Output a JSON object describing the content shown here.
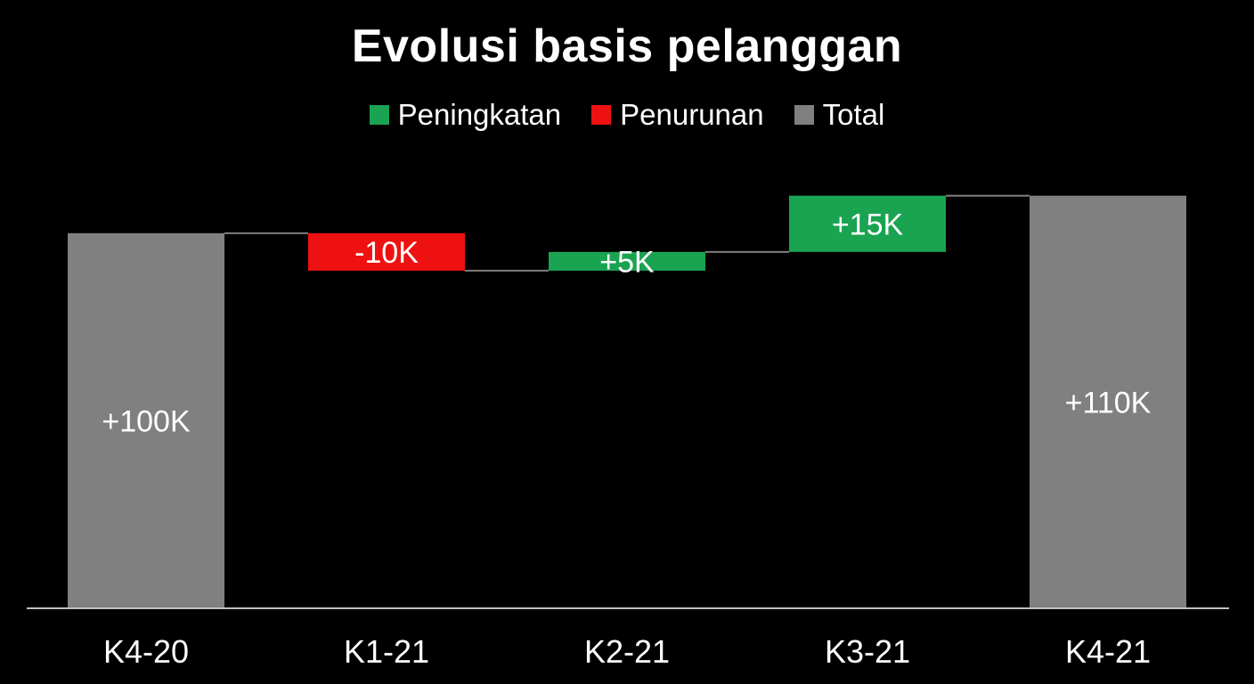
{
  "chart_data": {
    "type": "bar",
    "subtype": "waterfall",
    "title": "Evolusi basis pelanggan",
    "xlabel": "",
    "ylabel": "",
    "legend_position": "top",
    "grid": false,
    "ylim": [
      0,
      118
    ],
    "unit_suffix": "K",
    "legend": [
      {
        "name": "Peningkatan",
        "color": "#1aa351"
      },
      {
        "name": "Penurunan",
        "color": "#ee1111"
      },
      {
        "name": "Total",
        "color": "#808080"
      }
    ],
    "categories": [
      "K4-20",
      "K1-21",
      "K2-21",
      "K3-21",
      "K4-21"
    ],
    "points": [
      {
        "category": "K4-20",
        "kind": "total",
        "start": 0,
        "end": 100,
        "label": "+100K"
      },
      {
        "category": "K1-21",
        "kind": "decrease",
        "start": 100,
        "end": 90,
        "label": "-10K"
      },
      {
        "category": "K2-21",
        "kind": "increase",
        "start": 90,
        "end": 95,
        "label": "+5K"
      },
      {
        "category": "K3-21",
        "kind": "increase",
        "start": 95,
        "end": 110,
        "label": "+15K"
      },
      {
        "category": "K4-21",
        "kind": "total",
        "start": 0,
        "end": 110,
        "label": "+110K"
      }
    ]
  }
}
